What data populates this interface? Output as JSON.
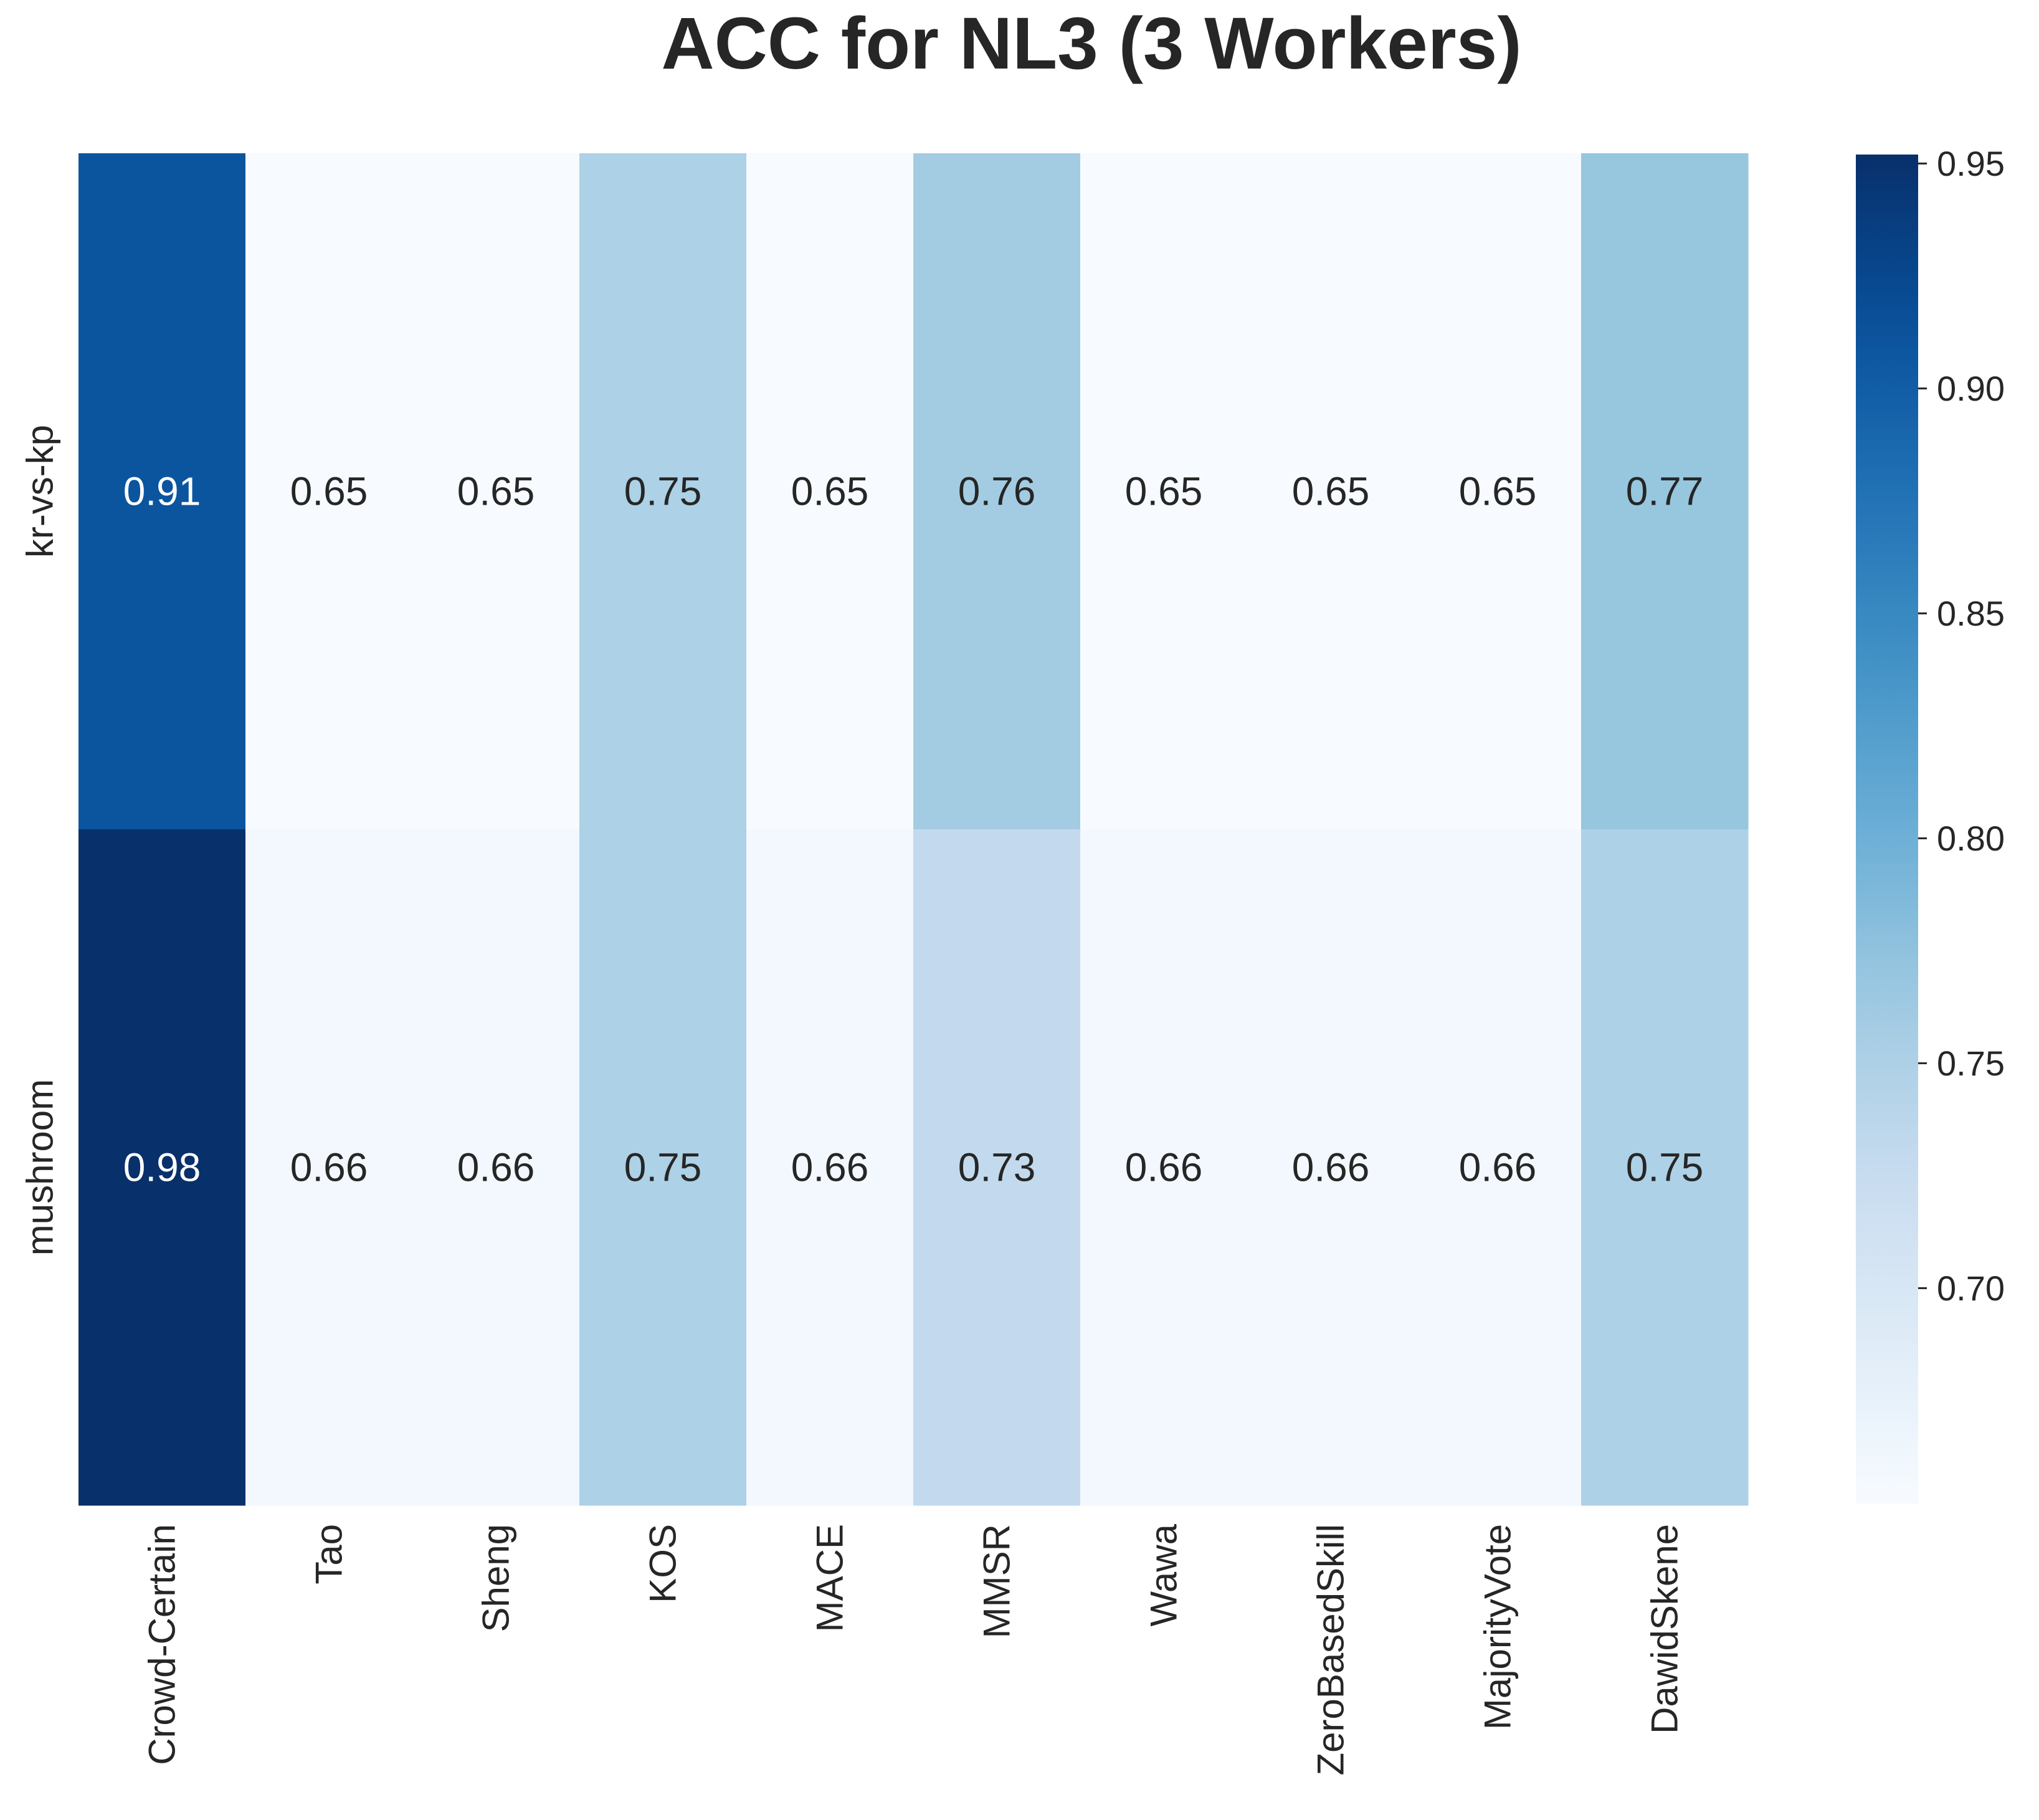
{
  "chart_data": {
    "type": "heatmap",
    "title": "ACC for NL3 (3 Workers)",
    "xlabel": "",
    "ylabel": "",
    "columns": [
      "Crowd-Certain",
      "Tao",
      "Sheng",
      "KOS",
      "MACE",
      "MMSR",
      "Wawa",
      "ZeroBasedSkill",
      "MajorityVote",
      "DawidSkene"
    ],
    "rows": [
      "kr-vs-kp",
      "mushroom"
    ],
    "values": [
      [
        0.91,
        0.65,
        0.65,
        0.75,
        0.65,
        0.76,
        0.65,
        0.65,
        0.65,
        0.77
      ],
      [
        0.98,
        0.66,
        0.66,
        0.75,
        0.66,
        0.73,
        0.66,
        0.66,
        0.66,
        0.75
      ]
    ],
    "colormap": "Blues",
    "colorbar": {
      "range": [
        0.652,
        0.952
      ],
      "ticks": [
        0.7,
        0.75,
        0.8,
        0.85,
        0.9,
        0.95
      ],
      "tick_labels": [
        "0.70",
        "0.75",
        "0.80",
        "0.85",
        "0.90",
        "0.95"
      ]
    },
    "cell_labels_format": "0.00",
    "grid": false,
    "legend": "colorbar-right"
  }
}
